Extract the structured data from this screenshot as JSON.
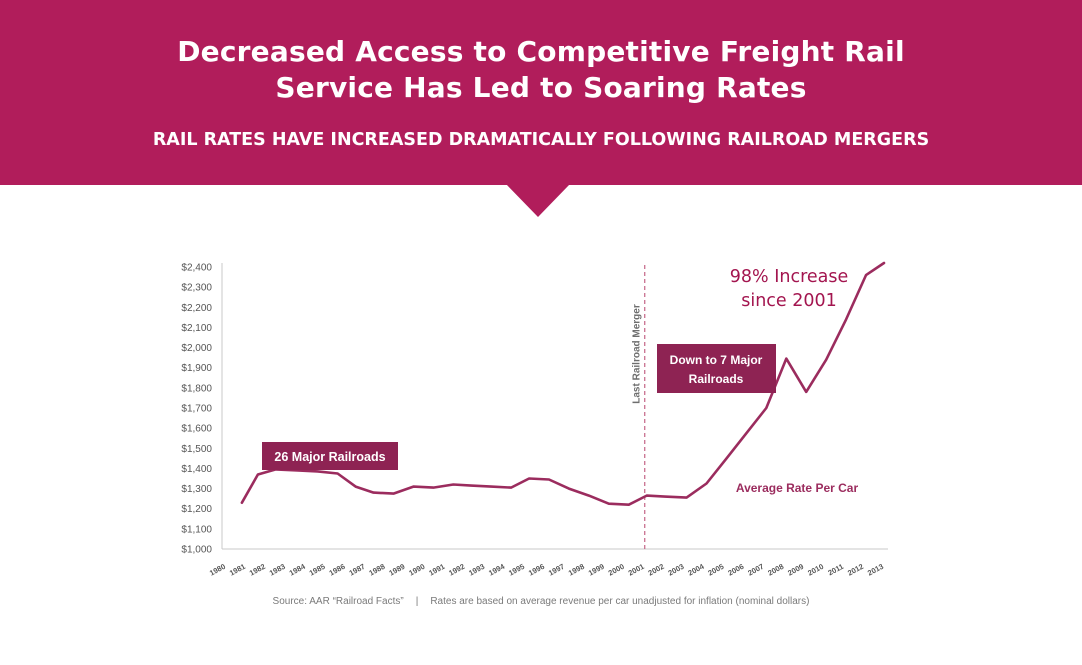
{
  "header": {
    "title_line1": "Decreased Access to Competitive Freight Rail",
    "title_line2": "Service Has Led to Soaring Rates",
    "subtitle": "RAIL RATES HAVE INCREASED DRAMATICALLY FOLLOWING RAILROAD MERGERS"
  },
  "colors": {
    "banner": "#b11d5b",
    "line": "#9b2c5e",
    "label_box": "#8e2353",
    "increase_text": "#a3154f",
    "merger_line": "#c9708f"
  },
  "chart_data": {
    "type": "line",
    "title": "",
    "xlabel": "",
    "ylabel": "",
    "ylim": [
      1000,
      2400
    ],
    "yticks": [
      1000,
      1100,
      1200,
      1300,
      1400,
      1500,
      1600,
      1700,
      1800,
      1900,
      2000,
      2100,
      2200,
      2300,
      2400
    ],
    "ytick_labels": [
      "$1,000",
      "$1,100",
      "$1,200",
      "$1,300",
      "$1,400",
      "$1,500",
      "$1,600",
      "$1,700",
      "$1,800",
      "$1,900",
      "$2,000",
      "$2,100",
      "$2,200",
      "$2,300",
      "$2,400"
    ],
    "xtick_labels": [
      "1980",
      "1981",
      "1982",
      "1983",
      "1984",
      "1985",
      "1986",
      "1987",
      "1988",
      "1989",
      "1990",
      "1991",
      "1992",
      "1993",
      "1994",
      "1995",
      "1996",
      "1997",
      "1998",
      "1999",
      "2000",
      "2001",
      "2002",
      "2003",
      "2004",
      "2005",
      "2006",
      "2007",
      "2008",
      "2009",
      "2010",
      "2011",
      "2012",
      "2013"
    ],
    "series": [
      {
        "name": "Average Rate Per Car",
        "x": [
          1981,
          1981.8,
          1982.7,
          1983.8,
          1984.8,
          1985.8,
          1986.7,
          1987.6,
          1988.6,
          1989.6,
          1990.6,
          1991.6,
          1992.5,
          1993.5,
          1994.5,
          1995.4,
          1996.4,
          1997.4,
          1998.4,
          1999.4,
          2000.4,
          2001.3,
          2002.2,
          2003.3,
          2004.3,
          2005.3,
          2006.3,
          2007.3,
          2008.3,
          2009.3,
          2010.3,
          2011.3,
          2012.3,
          2013.2
        ],
        "values": [
          1230,
          1370,
          1395,
          1390,
          1385,
          1375,
          1310,
          1280,
          1275,
          1310,
          1305,
          1320,
          1315,
          1310,
          1305,
          1350,
          1345,
          1300,
          1265,
          1225,
          1220,
          1265,
          1260,
          1255,
          1325,
          1450,
          1575,
          1700,
          1945,
          1780,
          1940,
          2140,
          2360,
          2420
        ]
      }
    ],
    "annotations": {
      "railroads_26": "26 Major Railroads",
      "railroads_7_line1": "Down to 7 Major",
      "railroads_7_line2": "Railroads",
      "merger_label": "Last Railroad Merger",
      "increase_line1": "98% Increase",
      "increase_line2": "since 2001",
      "series_label": "Average Rate Per Car"
    },
    "grid": false,
    "legend": "none"
  },
  "footer": {
    "source": "Source: AAR “Railroad Facts”",
    "separator": "|",
    "note": "Rates are based on average revenue per car unadjusted for inflation (nominal dollars)"
  }
}
